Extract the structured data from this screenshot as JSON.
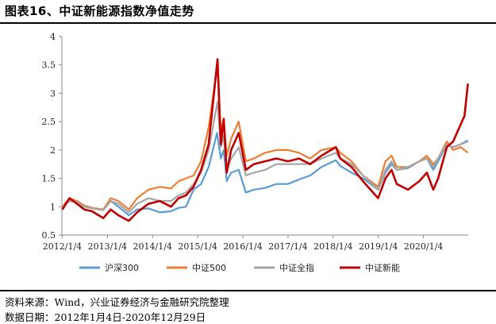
{
  "title": "图表16、中证新能源指数净值走势",
  "source_note": "资料来源：Wind，兴业证券经济与金融研究院整理",
  "date_note": "数据日期：2012年1月4日-2020年12月29日",
  "colors": {
    "hs300": "#5b9bd5",
    "zz500": "#ed7d31",
    "zzqz": "#a5a5a5",
    "zzxny": "#c00000"
  },
  "chart_data": {
    "type": "line",
    "title": "图表16、中证新能源指数净值走势",
    "xlabel": "",
    "ylabel": "",
    "xlim": [
      2012.0,
      2021.0
    ],
    "ylim": [
      0.5,
      4.0
    ],
    "yticks": [
      0.5,
      1,
      1.5,
      2,
      2.5,
      3,
      3.5,
      4
    ],
    "ytick_labels": [
      "0.5",
      "1",
      "1.5",
      "2",
      "2.5",
      "3",
      "3.5",
      "4"
    ],
    "xticks": [
      "2012/1/4",
      "2013/1/4",
      "2014/1/4",
      "2015/1/4",
      "2016/1/4",
      "2017/1/4",
      "2018/1/4",
      "2019/1/4",
      "2020/1/4"
    ],
    "grid": false,
    "legend": "bottom",
    "series": [
      {
        "name": "沪深300",
        "key": "hs300",
        "x": [
          "2012/1/4",
          "2012/3/1",
          "2012/5/1",
          "2012/7/1",
          "2012/9/1",
          "2012/12/1",
          "2013/2/1",
          "2013/4/1",
          "2013/6/25",
          "2013/9/1",
          "2013/12/1",
          "2014/3/1",
          "2014/6/1",
          "2014/8/1",
          "2014/10/1",
          "2014/12/1",
          "2015/2/1",
          "2015/4/1",
          "2015/6/8",
          "2015/7/8",
          "2015/8/1",
          "2015/8/26",
          "2015/10/1",
          "2015/12/1",
          "2016/1/28",
          "2016/4/1",
          "2016/7/1",
          "2016/10/1",
          "2017/1/4",
          "2017/4/1",
          "2017/7/1",
          "2017/10/1",
          "2018/1/26",
          "2018/3/1",
          "2018/6/1",
          "2018/9/1",
          "2019/1/3",
          "2019/3/1",
          "2019/4/20",
          "2019/6/1",
          "2019/9/1",
          "2019/12/1",
          "2020/2/1",
          "2020/3/23",
          "2020/5/1",
          "2020/7/10",
          "2020/9/1",
          "2020/11/1",
          "2020/12/29"
        ],
        "y": [
          1.0,
          1.1,
          1.08,
          1.0,
          0.98,
          0.95,
          1.1,
          1.0,
          0.85,
          0.95,
          0.97,
          0.9,
          0.92,
          0.98,
          1.0,
          1.3,
          1.4,
          1.7,
          2.3,
          1.85,
          2.0,
          1.45,
          1.6,
          1.65,
          1.25,
          1.3,
          1.33,
          1.4,
          1.4,
          1.48,
          1.55,
          1.7,
          1.82,
          1.72,
          1.6,
          1.5,
          1.3,
          1.6,
          1.75,
          1.65,
          1.68,
          1.8,
          1.85,
          1.65,
          1.8,
          2.1,
          2.05,
          2.1,
          2.17
        ]
      },
      {
        "name": "中证500",
        "key": "zz500",
        "x": [
          "2012/1/4",
          "2012/3/1",
          "2012/5/1",
          "2012/7/1",
          "2012/9/1",
          "2012/12/1",
          "2013/2/1",
          "2013/4/1",
          "2013/6/25",
          "2013/9/1",
          "2013/12/1",
          "2014/3/1",
          "2014/6/1",
          "2014/8/1",
          "2014/10/1",
          "2014/12/1",
          "2015/2/1",
          "2015/4/1",
          "2015/6/12",
          "2015/7/8",
          "2015/8/1",
          "2015/8/26",
          "2015/10/1",
          "2015/12/1",
          "2016/1/28",
          "2016/4/1",
          "2016/7/1",
          "2016/10/1",
          "2017/1/4",
          "2017/4/1",
          "2017/7/1",
          "2017/10/1",
          "2018/1/26",
          "2018/3/1",
          "2018/6/1",
          "2018/9/1",
          "2019/1/3",
          "2019/3/1",
          "2019/4/20",
          "2019/6/1",
          "2019/9/1",
          "2019/12/1",
          "2020/2/1",
          "2020/3/23",
          "2020/5/1",
          "2020/7/10",
          "2020/9/1",
          "2020/11/1",
          "2020/12/29"
        ],
        "y": [
          1.0,
          1.15,
          1.1,
          1.02,
          0.98,
          0.95,
          1.15,
          1.1,
          0.95,
          1.15,
          1.3,
          1.35,
          1.32,
          1.45,
          1.5,
          1.55,
          1.8,
          2.4,
          3.5,
          2.35,
          2.55,
          1.9,
          2.2,
          2.5,
          1.8,
          1.85,
          1.95,
          2.0,
          2.0,
          1.95,
          1.85,
          2.0,
          2.05,
          1.95,
          1.8,
          1.55,
          1.35,
          1.8,
          1.9,
          1.7,
          1.7,
          1.8,
          1.9,
          1.75,
          1.85,
          2.15,
          2.0,
          2.05,
          1.95
        ]
      },
      {
        "name": "中证全指",
        "key": "zzqz",
        "x": [
          "2012/1/4",
          "2012/3/1",
          "2012/5/1",
          "2012/7/1",
          "2012/9/1",
          "2012/12/1",
          "2013/2/1",
          "2013/4/1",
          "2013/6/25",
          "2013/9/1",
          "2013/12/1",
          "2014/3/1",
          "2014/6/1",
          "2014/8/1",
          "2014/10/1",
          "2014/12/1",
          "2015/2/1",
          "2015/4/1",
          "2015/6/12",
          "2015/7/8",
          "2015/8/1",
          "2015/8/26",
          "2015/10/1",
          "2015/12/1",
          "2016/1/28",
          "2016/4/1",
          "2016/7/1",
          "2016/10/1",
          "2017/1/4",
          "2017/4/1",
          "2017/7/1",
          "2017/10/1",
          "2018/1/26",
          "2018/3/1",
          "2018/6/1",
          "2018/9/1",
          "2019/1/3",
          "2019/3/1",
          "2019/4/20",
          "2019/6/1",
          "2019/9/1",
          "2019/12/1",
          "2020/2/1",
          "2020/3/23",
          "2020/5/1",
          "2020/7/10",
          "2020/9/1",
          "2020/11/1",
          "2020/12/29"
        ],
        "y": [
          1.0,
          1.1,
          1.08,
          1.0,
          0.97,
          0.94,
          1.1,
          1.05,
          0.9,
          1.05,
          1.15,
          1.1,
          1.1,
          1.2,
          1.25,
          1.4,
          1.6,
          2.0,
          2.85,
          2.05,
          2.25,
          1.65,
          1.85,
          2.05,
          1.55,
          1.6,
          1.65,
          1.75,
          1.75,
          1.75,
          1.75,
          1.85,
          1.95,
          1.85,
          1.75,
          1.55,
          1.3,
          1.65,
          1.8,
          1.65,
          1.7,
          1.8,
          1.85,
          1.7,
          1.85,
          2.1,
          2.05,
          2.1,
          2.15
        ]
      },
      {
        "name": "中证新能",
        "key": "zzxny",
        "x": [
          "2012/1/4",
          "2012/3/1",
          "2012/5/1",
          "2012/7/1",
          "2012/9/1",
          "2012/12/1",
          "2013/2/1",
          "2013/4/1",
          "2013/6/25",
          "2013/9/1",
          "2013/12/1",
          "2014/3/1",
          "2014/6/1",
          "2014/8/1",
          "2014/10/1",
          "2014/12/1",
          "2015/2/1",
          "2015/4/1",
          "2015/6/12",
          "2015/7/8",
          "2015/8/1",
          "2015/8/26",
          "2015/10/1",
          "2015/12/1",
          "2016/1/28",
          "2016/4/1",
          "2016/7/1",
          "2016/10/1",
          "2017/1/4",
          "2017/4/1",
          "2017/7/1",
          "2017/10/1",
          "2018/1/26",
          "2018/3/1",
          "2018/6/1",
          "2018/9/1",
          "2019/1/3",
          "2019/3/1",
          "2019/4/20",
          "2019/6/1",
          "2019/9/1",
          "2019/12/1",
          "2020/2/1",
          "2020/3/23",
          "2020/5/1",
          "2020/7/10",
          "2020/9/1",
          "2020/11/1",
          "2020/12/1",
          "2020/12/29"
        ],
        "y": [
          0.95,
          1.15,
          1.05,
          0.95,
          0.92,
          0.8,
          0.95,
          0.85,
          0.75,
          0.9,
          1.05,
          1.1,
          1.0,
          1.15,
          1.2,
          1.35,
          1.65,
          2.1,
          3.6,
          2.1,
          2.55,
          1.6,
          2.0,
          2.3,
          1.65,
          1.75,
          1.8,
          1.85,
          1.8,
          1.85,
          1.75,
          1.9,
          2.05,
          1.85,
          1.7,
          1.45,
          1.15,
          1.5,
          1.65,
          1.4,
          1.3,
          1.45,
          1.6,
          1.3,
          1.5,
          2.05,
          2.15,
          2.45,
          2.6,
          3.17
        ]
      }
    ]
  }
}
